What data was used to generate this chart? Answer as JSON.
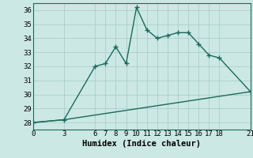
{
  "title": "",
  "xlabel": "Humidex (Indice chaleur)",
  "ylabel": "",
  "background_color": "#cce8e4",
  "grid_color": "#aacece",
  "line_color": "#1a6a5a",
  "xticks": [
    0,
    3,
    6,
    7,
    8,
    9,
    10,
    11,
    12,
    13,
    14,
    15,
    16,
    17,
    18,
    21
  ],
  "yticks": [
    28,
    29,
    30,
    31,
    32,
    33,
    34,
    35,
    36
  ],
  "xlim": [
    0,
    21
  ],
  "ylim": [
    27.5,
    36.5
  ],
  "upper_line_x": [
    0,
    3,
    6,
    7,
    8,
    9,
    10,
    11,
    12,
    13,
    14,
    15,
    16,
    17,
    18,
    21
  ],
  "upper_line_y": [
    28.0,
    28.2,
    32.0,
    32.2,
    33.4,
    32.2,
    36.2,
    34.6,
    34.0,
    34.2,
    34.4,
    34.4,
    33.6,
    32.8,
    32.6,
    30.2
  ],
  "lower_line_x": [
    0,
    3,
    21
  ],
  "lower_line_y": [
    28.0,
    28.2,
    30.2
  ],
  "font_family": "monospace",
  "xlabel_fontsize": 7.5,
  "tick_fontsize": 6.5,
  "linewidth": 1.0,
  "markersize": 2.5
}
